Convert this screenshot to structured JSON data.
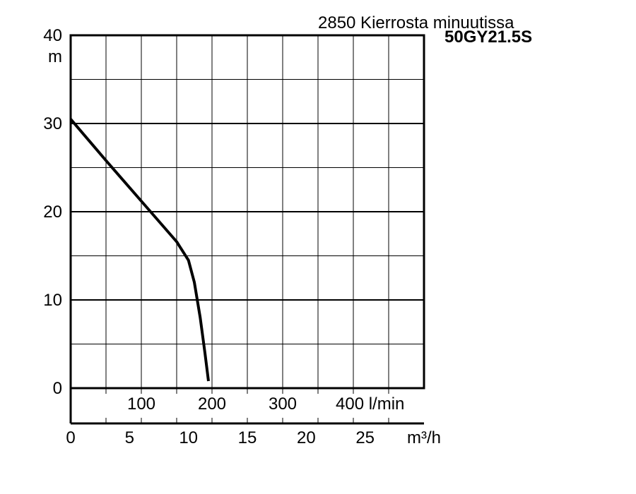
{
  "chart_data": {
    "type": "line",
    "title": "2850 Kierrosta minuutissa",
    "subtitle": "50GY21.5S",
    "ylabel": "m",
    "ylim": [
      0,
      40
    ],
    "yticks": [
      "0",
      "10",
      "20",
      "30",
      "40"
    ],
    "xlabel": "m³/h",
    "xlim": [
      0,
      30
    ],
    "xticks": [
      "0",
      "5",
      "10",
      "15",
      "20",
      "25"
    ],
    "secondary_x": {
      "label": "l/min",
      "lim": [
        0,
        500
      ],
      "ticks": [
        "100",
        "200",
        "300",
        "400 l/min"
      ]
    },
    "grid": true,
    "series": [
      {
        "x": [
          0,
          3,
          6,
          9,
          10,
          10.5,
          11.0,
          11.4,
          11.7
        ],
        "y": [
          30.5,
          25.8,
          21.2,
          16.6,
          14.5,
          12.0,
          8.0,
          4.0,
          0.8
        ]
      }
    ],
    "colors": {
      "line": "#000000",
      "grid": "#000000",
      "frame": "#000000"
    }
  }
}
